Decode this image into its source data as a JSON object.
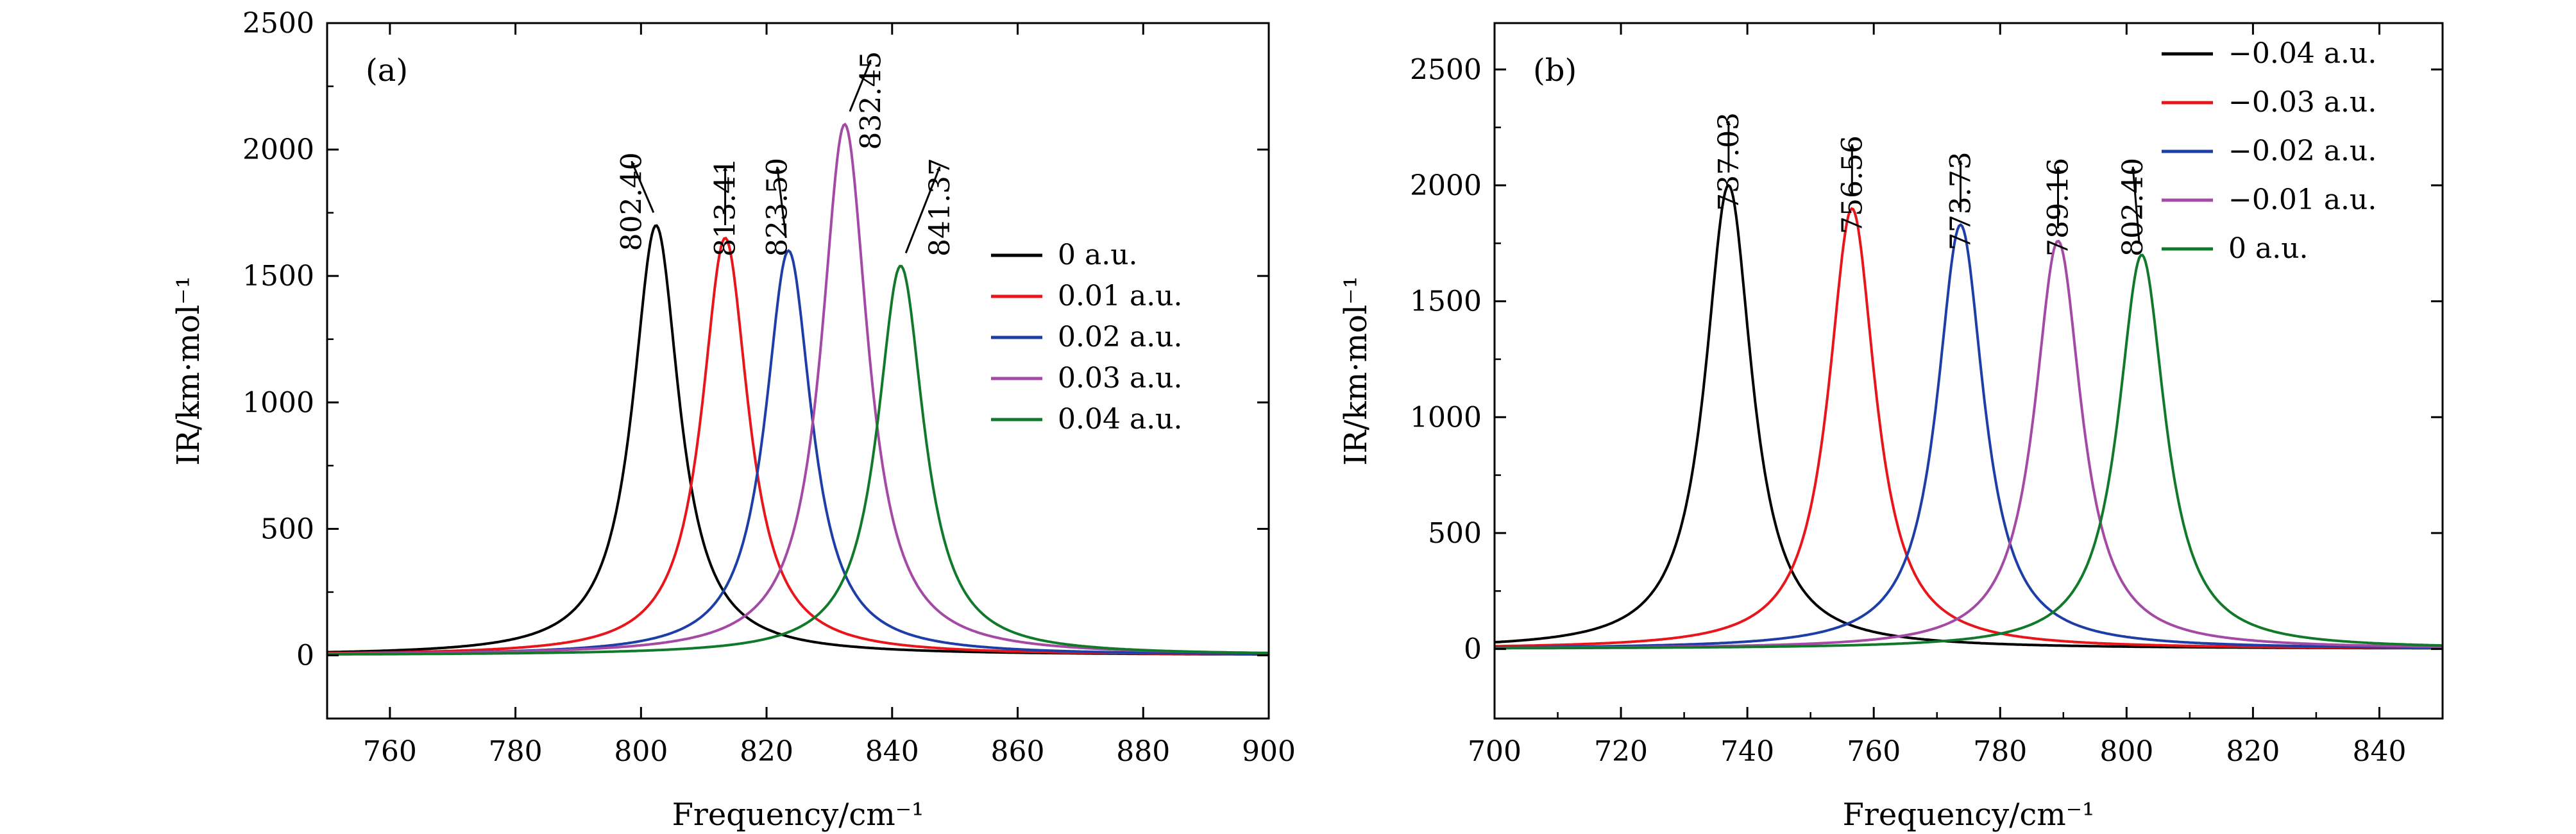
{
  "chart_data": [
    {
      "type": "line",
      "panel_label": "(a)",
      "xlabel": "Frequency/cm⁻¹",
      "ylabel": "IR/km·mol⁻¹",
      "xlim": [
        750,
        900
      ],
      "ylim": [
        -250,
        2500
      ],
      "xticks": [
        "760",
        "780",
        "800",
        "820",
        "840",
        "860",
        "880",
        "900"
      ],
      "xtick_values": [
        760,
        780,
        800,
        820,
        840,
        860,
        880,
        900
      ],
      "yticks": [
        "0",
        "500",
        "1000",
        "1500",
        "2000",
        "2500"
      ],
      "ytick_values": [
        0,
        500,
        1000,
        1500,
        2000,
        2500
      ],
      "legend_position": "right-middle",
      "series": [
        {
          "name": "0 a.u.",
          "color": "#000000",
          "peak_x": 802.4,
          "peak_y": 1700,
          "hwhm": 4.5,
          "peak_label": "802.40",
          "label_x": 798.5
        },
        {
          "name": "0.01 a.u.",
          "color": "#e8151b",
          "peak_x": 813.41,
          "peak_y": 1650,
          "hwhm": 4.5,
          "peak_label": "813.41",
          "label_x": 813.41
        },
        {
          "name": "0.02 a.u.",
          "color": "#1d3ea6",
          "peak_x": 823.5,
          "peak_y": 1600,
          "hwhm": 4.5,
          "peak_label": "823.50",
          "label_x": 821.7
        },
        {
          "name": "0.03 a.u.",
          "color": "#a449a4",
          "peak_x": 832.45,
          "peak_y": 2100,
          "hwhm": 4.5,
          "peak_label": "832.45",
          "label_x": 836.6
        },
        {
          "name": "0.04 a.u.",
          "color": "#117a2a",
          "peak_x": 841.37,
          "peak_y": 1540,
          "hwhm": 4.5,
          "peak_label": "841.37",
          "label_x": 847.6
        }
      ]
    },
    {
      "type": "line",
      "panel_label": "(b)",
      "xlabel": "Frequency/cm⁻¹",
      "ylabel": "IR/km·mol⁻¹",
      "xlim": [
        700,
        850
      ],
      "ylim": [
        -300,
        2700
      ],
      "xticks": [
        "700",
        "720",
        "740",
        "760",
        "780",
        "800",
        "820",
        "840"
      ],
      "xtick_values": [
        700,
        720,
        740,
        760,
        780,
        800,
        820,
        840
      ],
      "yticks": [
        "0",
        "500",
        "1000",
        "1500",
        "2000",
        "2500"
      ],
      "ytick_values": [
        0,
        500,
        1000,
        1500,
        2000,
        2500
      ],
      "legend_position": "top-right",
      "series": [
        {
          "name": "−0.04 a.u.",
          "color": "#000000",
          "peak_x": 737.03,
          "peak_y": 2000,
          "hwhm": 4.5,
          "peak_label": "737.03",
          "label_x": 737.03
        },
        {
          "name": "−0.03 a.u.",
          "color": "#e8151b",
          "peak_x": 756.56,
          "peak_y": 1900,
          "hwhm": 4.5,
          "peak_label": "756.56",
          "label_x": 756.56
        },
        {
          "name": "−0.02 a.u.",
          "color": "#1d3ea6",
          "peak_x": 773.73,
          "peak_y": 1830,
          "hwhm": 4.5,
          "peak_label": "773.73",
          "label_x": 773.73
        },
        {
          "name": "−0.01 a.u.",
          "color": "#a449a4",
          "peak_x": 789.16,
          "peak_y": 1760,
          "hwhm": 4.5,
          "peak_label": "789.16",
          "label_x": 789.16
        },
        {
          "name": "0 a.u.",
          "color": "#117a2a",
          "peak_x": 802.4,
          "peak_y": 1700,
          "hwhm": 4.5,
          "peak_label": "802.40",
          "label_x": 801.0
        }
      ]
    }
  ]
}
